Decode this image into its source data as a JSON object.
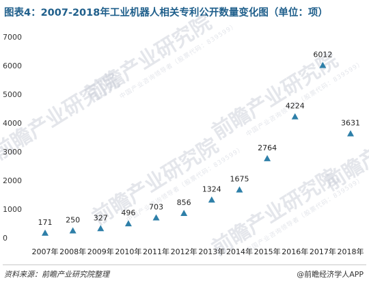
{
  "title": "图表4：2007-2018年工业机器人相关专利公开数量变化图（单位：项）",
  "watermark": {
    "name": "前瞻产业研究院",
    "sub": "中国产业咨询领导者（股票代码：839599）"
  },
  "footer": {
    "source": "资料来源：前瞻产业研究院整理",
    "brand": "@前瞻经济学人APP"
  },
  "colors": {
    "marker": "#2e7fa8",
    "title": "#1f5f8b"
  },
  "chart_data": {
    "type": "scatter",
    "marker": "triangle",
    "categories": [
      "2007年",
      "2008年",
      "2009年",
      "2010年",
      "2011年",
      "2012年",
      "2013年",
      "2014年",
      "2015年",
      "2016年",
      "2017年",
      "2018年"
    ],
    "values": [
      171,
      250,
      327,
      496,
      703,
      856,
      1324,
      1675,
      2764,
      4224,
      6012,
      3631
    ],
    "data_labels": [
      "171",
      "250",
      "327",
      "496",
      "703",
      "856",
      "1324",
      "1675",
      "2764",
      "4224",
      "6012",
      "3631"
    ],
    "yticks": [
      "0",
      "1000",
      "2000",
      "3000",
      "4000",
      "5000",
      "6000",
      "7000"
    ],
    "ylim": [
      0,
      7000
    ],
    "grid": false,
    "legend": "none",
    "xlabel": "",
    "ylabel": ""
  }
}
